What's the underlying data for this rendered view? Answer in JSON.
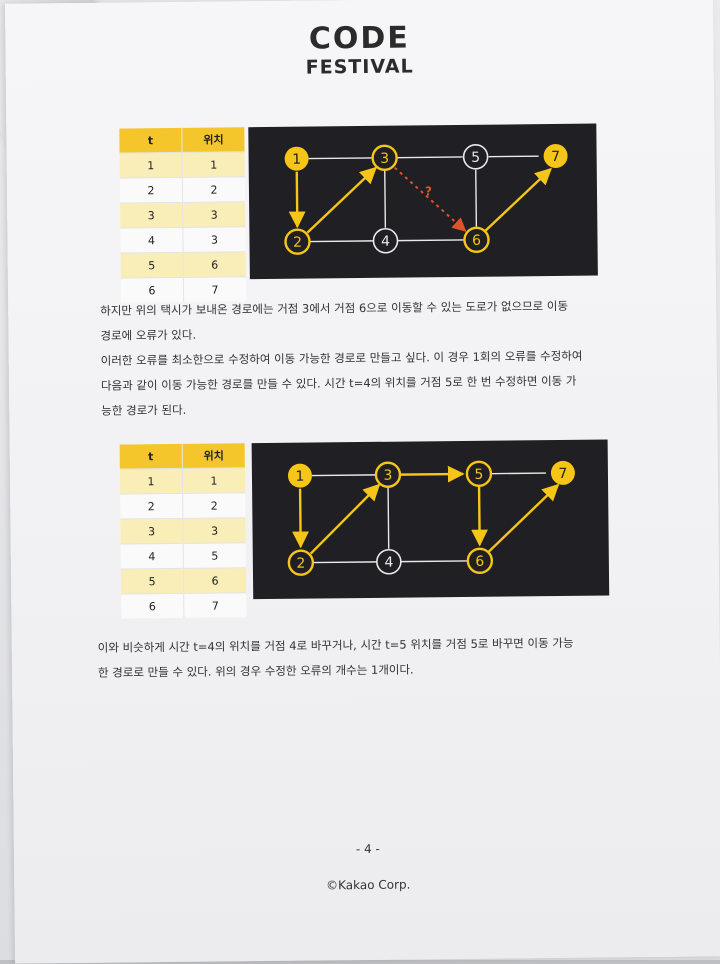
{
  "logo": {
    "line1": "CODE",
    "line2": "FESTIVAL"
  },
  "tables": [
    {
      "headers": [
        "t",
        "위치"
      ],
      "rows": [
        [
          "1",
          "1"
        ],
        [
          "2",
          "2"
        ],
        [
          "3",
          "3"
        ],
        [
          "4",
          "3"
        ],
        [
          "5",
          "6"
        ],
        [
          "6",
          "7"
        ]
      ]
    },
    {
      "headers": [
        "t",
        "위치"
      ],
      "rows": [
        [
          "1",
          "1"
        ],
        [
          "2",
          "2"
        ],
        [
          "3",
          "3"
        ],
        [
          "4",
          "5"
        ],
        [
          "5",
          "6"
        ],
        [
          "6",
          "7"
        ]
      ]
    }
  ],
  "graphs": [
    {
      "question_mark": "?",
      "nodes": [
        "1",
        "3",
        "5",
        "7",
        "2",
        "4",
        "6"
      ]
    },
    {
      "nodes": [
        "1",
        "3",
        "5",
        "7",
        "2",
        "4",
        "6"
      ]
    }
  ],
  "paragraph1": {
    "line1": "하지만 위의 택시가 보내온 경로에는 거점 3에서 거점 6으로 이동할 수 있는 도로가 없으므로 이동",
    "line2": "경로에 오류가 있다.",
    "line3": "이러한 오류를 최소한으로 수정하여 이동 가능한 경로로 만들고 싶다. 이 경우 1회의 오류를 수정하여",
    "line4": "다음과 같이 이동 가능한 경로를 만들 수 있다. 시간 t=4의 위치를 거점 5로 한 번 수정하면 이동 가",
    "line5": "능한 경로가 된다."
  },
  "paragraph2": {
    "line1": "이와 비슷하게 시간 t=4의 위치를 거점 4로 바꾸거나, 시간 t=5 위치를 거점 5로 바꾸면 이동 가능",
    "line2": "한 경로로 만들 수 있다. 위의 경우 수정한 오류의 개수는 1개이다."
  },
  "page_number": "- 4 -",
  "copyright": "©Kakao Corp.",
  "colors": {
    "yellow": "#f5c518",
    "graph_bg": "#1f1f24",
    "error": "#e0522a"
  }
}
